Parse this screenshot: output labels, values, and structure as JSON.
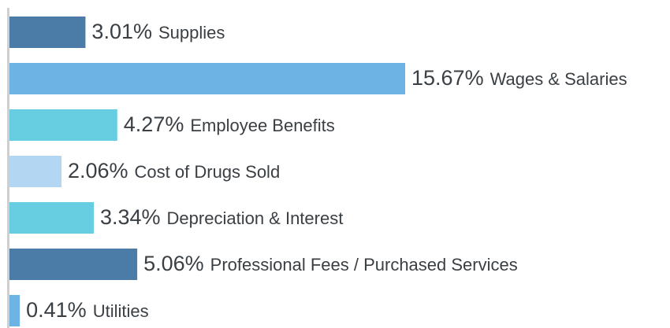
{
  "chart_data": {
    "type": "bar",
    "orientation": "horizontal",
    "categories": [
      "Supplies",
      "Wages & Salaries",
      "Employee Benefits",
      "Cost of Drugs Sold",
      "Depreciation & Interest",
      "Professional Fees / Purchased Services",
      "Utilities"
    ],
    "values": [
      3.01,
      15.67,
      4.27,
      2.06,
      3.34,
      5.06,
      0.41
    ],
    "value_labels": [
      "3.01%",
      "15.67%",
      "4.27%",
      "2.06%",
      "3.34%",
      "5.06%",
      "0.41%"
    ],
    "colors": [
      "#4b7ba7",
      "#6db3e3",
      "#67cde1",
      "#b3d7f3",
      "#67cde1",
      "#4b7ba7",
      "#6db3e3"
    ]
  }
}
